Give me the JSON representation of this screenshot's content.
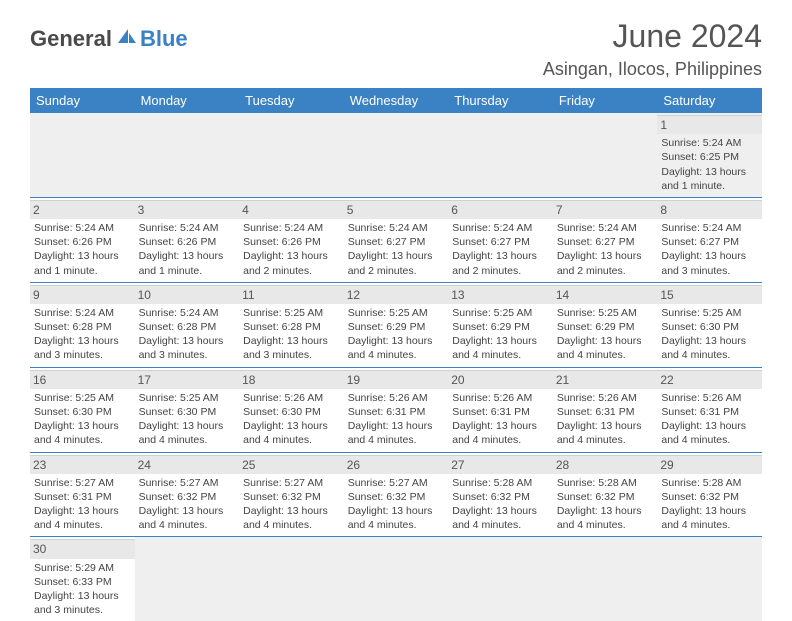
{
  "logo": {
    "text1": "General",
    "text2": "Blue"
  },
  "title": "June 2024",
  "location": "Asingan, Ilocos, Philippines",
  "colors": {
    "header_bg": "#3b82c4",
    "header_text": "#ffffff",
    "daynum_bg": "#e8e8e8",
    "row_divider": "#3b82c4",
    "text": "#444444",
    "logo_dark": "#4a4a4a",
    "logo_blue": "#3b82c4"
  },
  "weekdays": [
    "Sunday",
    "Monday",
    "Tuesday",
    "Wednesday",
    "Thursday",
    "Friday",
    "Saturday"
  ],
  "weeks": [
    [
      null,
      null,
      null,
      null,
      null,
      null,
      {
        "n": "1",
        "sr": "Sunrise: 5:24 AM",
        "ss": "Sunset: 6:25 PM",
        "d1": "Daylight: 13 hours",
        "d2": "and 1 minute."
      }
    ],
    [
      {
        "n": "2",
        "sr": "Sunrise: 5:24 AM",
        "ss": "Sunset: 6:26 PM",
        "d1": "Daylight: 13 hours",
        "d2": "and 1 minute."
      },
      {
        "n": "3",
        "sr": "Sunrise: 5:24 AM",
        "ss": "Sunset: 6:26 PM",
        "d1": "Daylight: 13 hours",
        "d2": "and 1 minute."
      },
      {
        "n": "4",
        "sr": "Sunrise: 5:24 AM",
        "ss": "Sunset: 6:26 PM",
        "d1": "Daylight: 13 hours",
        "d2": "and 2 minutes."
      },
      {
        "n": "5",
        "sr": "Sunrise: 5:24 AM",
        "ss": "Sunset: 6:27 PM",
        "d1": "Daylight: 13 hours",
        "d2": "and 2 minutes."
      },
      {
        "n": "6",
        "sr": "Sunrise: 5:24 AM",
        "ss": "Sunset: 6:27 PM",
        "d1": "Daylight: 13 hours",
        "d2": "and 2 minutes."
      },
      {
        "n": "7",
        "sr": "Sunrise: 5:24 AM",
        "ss": "Sunset: 6:27 PM",
        "d1": "Daylight: 13 hours",
        "d2": "and 2 minutes."
      },
      {
        "n": "8",
        "sr": "Sunrise: 5:24 AM",
        "ss": "Sunset: 6:27 PM",
        "d1": "Daylight: 13 hours",
        "d2": "and 3 minutes."
      }
    ],
    [
      {
        "n": "9",
        "sr": "Sunrise: 5:24 AM",
        "ss": "Sunset: 6:28 PM",
        "d1": "Daylight: 13 hours",
        "d2": "and 3 minutes."
      },
      {
        "n": "10",
        "sr": "Sunrise: 5:24 AM",
        "ss": "Sunset: 6:28 PM",
        "d1": "Daylight: 13 hours",
        "d2": "and 3 minutes."
      },
      {
        "n": "11",
        "sr": "Sunrise: 5:25 AM",
        "ss": "Sunset: 6:28 PM",
        "d1": "Daylight: 13 hours",
        "d2": "and 3 minutes."
      },
      {
        "n": "12",
        "sr": "Sunrise: 5:25 AM",
        "ss": "Sunset: 6:29 PM",
        "d1": "Daylight: 13 hours",
        "d2": "and 4 minutes."
      },
      {
        "n": "13",
        "sr": "Sunrise: 5:25 AM",
        "ss": "Sunset: 6:29 PM",
        "d1": "Daylight: 13 hours",
        "d2": "and 4 minutes."
      },
      {
        "n": "14",
        "sr": "Sunrise: 5:25 AM",
        "ss": "Sunset: 6:29 PM",
        "d1": "Daylight: 13 hours",
        "d2": "and 4 minutes."
      },
      {
        "n": "15",
        "sr": "Sunrise: 5:25 AM",
        "ss": "Sunset: 6:30 PM",
        "d1": "Daylight: 13 hours",
        "d2": "and 4 minutes."
      }
    ],
    [
      {
        "n": "16",
        "sr": "Sunrise: 5:25 AM",
        "ss": "Sunset: 6:30 PM",
        "d1": "Daylight: 13 hours",
        "d2": "and 4 minutes."
      },
      {
        "n": "17",
        "sr": "Sunrise: 5:25 AM",
        "ss": "Sunset: 6:30 PM",
        "d1": "Daylight: 13 hours",
        "d2": "and 4 minutes."
      },
      {
        "n": "18",
        "sr": "Sunrise: 5:26 AM",
        "ss": "Sunset: 6:30 PM",
        "d1": "Daylight: 13 hours",
        "d2": "and 4 minutes."
      },
      {
        "n": "19",
        "sr": "Sunrise: 5:26 AM",
        "ss": "Sunset: 6:31 PM",
        "d1": "Daylight: 13 hours",
        "d2": "and 4 minutes."
      },
      {
        "n": "20",
        "sr": "Sunrise: 5:26 AM",
        "ss": "Sunset: 6:31 PM",
        "d1": "Daylight: 13 hours",
        "d2": "and 4 minutes."
      },
      {
        "n": "21",
        "sr": "Sunrise: 5:26 AM",
        "ss": "Sunset: 6:31 PM",
        "d1": "Daylight: 13 hours",
        "d2": "and 4 minutes."
      },
      {
        "n": "22",
        "sr": "Sunrise: 5:26 AM",
        "ss": "Sunset: 6:31 PM",
        "d1": "Daylight: 13 hours",
        "d2": "and 4 minutes."
      }
    ],
    [
      {
        "n": "23",
        "sr": "Sunrise: 5:27 AM",
        "ss": "Sunset: 6:31 PM",
        "d1": "Daylight: 13 hours",
        "d2": "and 4 minutes."
      },
      {
        "n": "24",
        "sr": "Sunrise: 5:27 AM",
        "ss": "Sunset: 6:32 PM",
        "d1": "Daylight: 13 hours",
        "d2": "and 4 minutes."
      },
      {
        "n": "25",
        "sr": "Sunrise: 5:27 AM",
        "ss": "Sunset: 6:32 PM",
        "d1": "Daylight: 13 hours",
        "d2": "and 4 minutes."
      },
      {
        "n": "26",
        "sr": "Sunrise: 5:27 AM",
        "ss": "Sunset: 6:32 PM",
        "d1": "Daylight: 13 hours",
        "d2": "and 4 minutes."
      },
      {
        "n": "27",
        "sr": "Sunrise: 5:28 AM",
        "ss": "Sunset: 6:32 PM",
        "d1": "Daylight: 13 hours",
        "d2": "and 4 minutes."
      },
      {
        "n": "28",
        "sr": "Sunrise: 5:28 AM",
        "ss": "Sunset: 6:32 PM",
        "d1": "Daylight: 13 hours",
        "d2": "and 4 minutes."
      },
      {
        "n": "29",
        "sr": "Sunrise: 5:28 AM",
        "ss": "Sunset: 6:32 PM",
        "d1": "Daylight: 13 hours",
        "d2": "and 4 minutes."
      }
    ],
    [
      {
        "n": "30",
        "sr": "Sunrise: 5:29 AM",
        "ss": "Sunset: 6:33 PM",
        "d1": "Daylight: 13 hours",
        "d2": "and 3 minutes."
      },
      null,
      null,
      null,
      null,
      null,
      null
    ]
  ]
}
